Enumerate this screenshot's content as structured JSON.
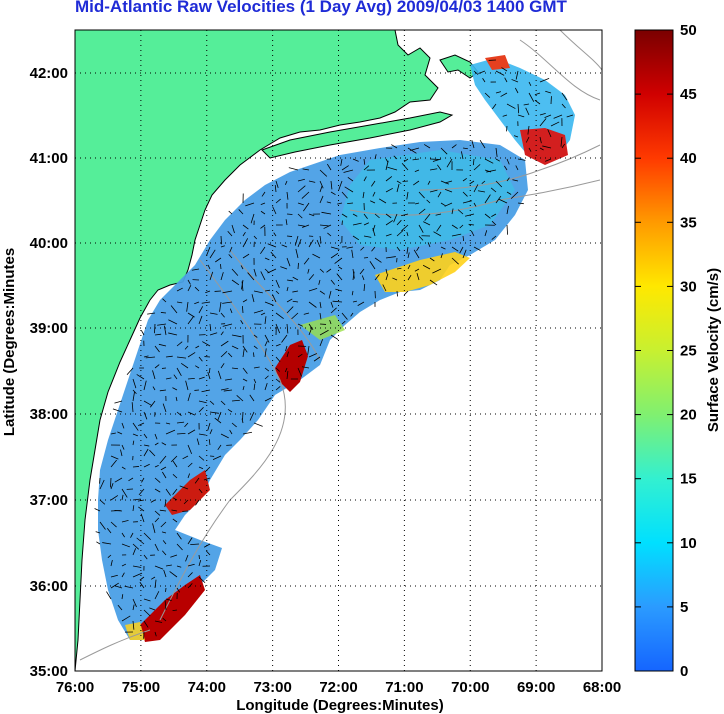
{
  "title": "Mid-Atlantic Raw Velocities (1 Day Avg) 2009/04/03 1400 GMT",
  "x_axis": {
    "label": "Longitude (Degrees:Minutes)",
    "ticks": [
      "76:00",
      "75:00",
      "74:00",
      "73:00",
      "72:00",
      "71:00",
      "70:00",
      "69:00",
      "68:00"
    ]
  },
  "y_axis": {
    "label": "Latitude (Degrees:Minutes",
    "ticks": [
      "42:00",
      "41:00",
      "40:00",
      "39:00",
      "38:00",
      "37:00",
      "36:00",
      "35:00"
    ]
  },
  "colorbar": {
    "label": "Surface Velocity (cm/s)",
    "ticks": [
      "50",
      "45",
      "40",
      "35",
      "30",
      "25",
      "20",
      "15",
      "10",
      "5",
      "0"
    ],
    "min": 0,
    "max": 50
  },
  "colors": {
    "land": "#55ee99",
    "title": "#1f2bd6",
    "gridline": "#000000",
    "bathymetry": "#aaaaaa"
  }
}
